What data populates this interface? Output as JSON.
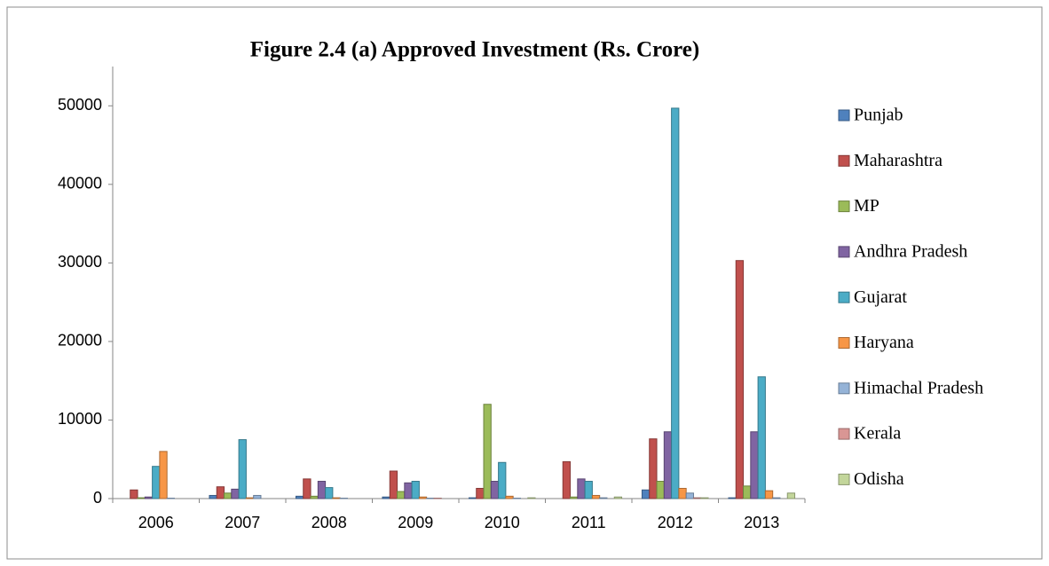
{
  "chart_data": {
    "type": "bar",
    "title": "Figure 2.4 (a) Approved Investment (Rs. Crore)",
    "categories": [
      "2006",
      "2007",
      "2008",
      "2009",
      "2010",
      "2011",
      "2012",
      "2013"
    ],
    "series": [
      {
        "name": "Punjab",
        "color": "#4f81bd",
        "values": [
          0,
          400,
          300,
          200,
          100,
          0,
          1100,
          100
        ]
      },
      {
        "name": "Maharashtra",
        "color": "#c0504d",
        "values": [
          1100,
          1500,
          2500,
          3500,
          1300,
          4700,
          7600,
          30300
        ]
      },
      {
        "name": "MP",
        "color": "#9bbb59",
        "values": [
          100,
          700,
          300,
          900,
          12000,
          200,
          2200,
          1600
        ]
      },
      {
        "name": "Andhra Pradesh",
        "color": "#8064a2",
        "values": [
          200,
          1200,
          2200,
          2000,
          2200,
          2500,
          8500,
          8500
        ]
      },
      {
        "name": "Gujarat",
        "color": "#4bacc6",
        "values": [
          4100,
          7500,
          1400,
          2200,
          4600,
          2200,
          49700,
          15500
        ]
      },
      {
        "name": "Haryana",
        "color": "#f79646",
        "values": [
          6000,
          100,
          100,
          200,
          300,
          400,
          1300,
          1000
        ]
      },
      {
        "name": "Himachal Pradesh",
        "color": "#95b3d7",
        "values": [
          50,
          400,
          50,
          50,
          50,
          100,
          700,
          100
        ]
      },
      {
        "name": "Kerala",
        "color": "#d99694",
        "values": [
          0,
          0,
          0,
          50,
          0,
          0,
          100,
          0
        ]
      },
      {
        "name": "Odisha",
        "color": "#c3d69b",
        "values": [
          0,
          0,
          0,
          0,
          100,
          200,
          100,
          700
        ]
      }
    ],
    "ylim": [
      0,
      55000
    ],
    "yticks": [
      0,
      10000,
      20000,
      30000,
      40000,
      50000
    ],
    "grid": false,
    "legend": "right"
  }
}
